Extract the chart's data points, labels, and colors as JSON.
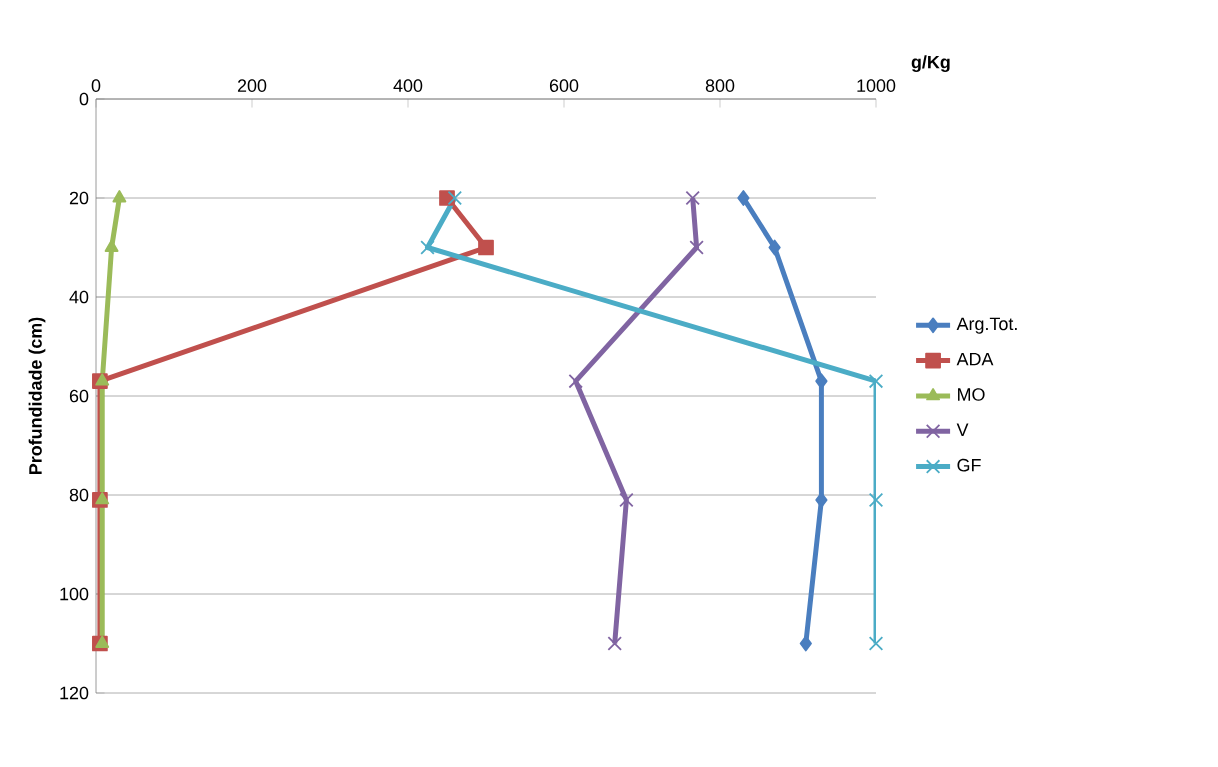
{
  "chart_data": {
    "type": "line",
    "xlabel": "g/Kg",
    "ylabel": "Profundidade (cm)",
    "xlim": [
      0,
      1000
    ],
    "xticks": [
      0,
      200,
      400,
      600,
      800,
      1000
    ],
    "ylim": [
      120,
      0
    ],
    "yticks": [
      0,
      20,
      40,
      60,
      80,
      100,
      120
    ],
    "grid": "y",
    "legend": "right",
    "series": [
      {
        "name": "Arg.Tot.",
        "color": "#4a7ebf",
        "marker": "diamond",
        "x": [
          830,
          870,
          930,
          930,
          910
        ],
        "values": [
          20,
          30,
          57,
          81,
          110
        ]
      },
      {
        "name": "ADA",
        "color": "#c0504d",
        "marker": "square",
        "x": [
          450,
          500,
          5,
          5,
          5
        ],
        "values": [
          20,
          30,
          57,
          81,
          110
        ]
      },
      {
        "name": "MO",
        "color": "#9bbb59",
        "marker": "triangle",
        "x": [
          30,
          20,
          8,
          8,
          8
        ],
        "values": [
          20,
          30,
          57,
          81,
          110
        ]
      },
      {
        "name": "V",
        "color": "#8064a2",
        "marker": "cross",
        "x": [
          765,
          770,
          615,
          680,
          665
        ],
        "values": [
          20,
          30,
          57,
          81,
          110
        ]
      },
      {
        "name": "GF",
        "color": "#4bacc6",
        "marker": "cross",
        "x": [
          460,
          425,
          1000,
          1000,
          1000
        ],
        "values": [
          20,
          30,
          57,
          81,
          110
        ]
      }
    ]
  }
}
